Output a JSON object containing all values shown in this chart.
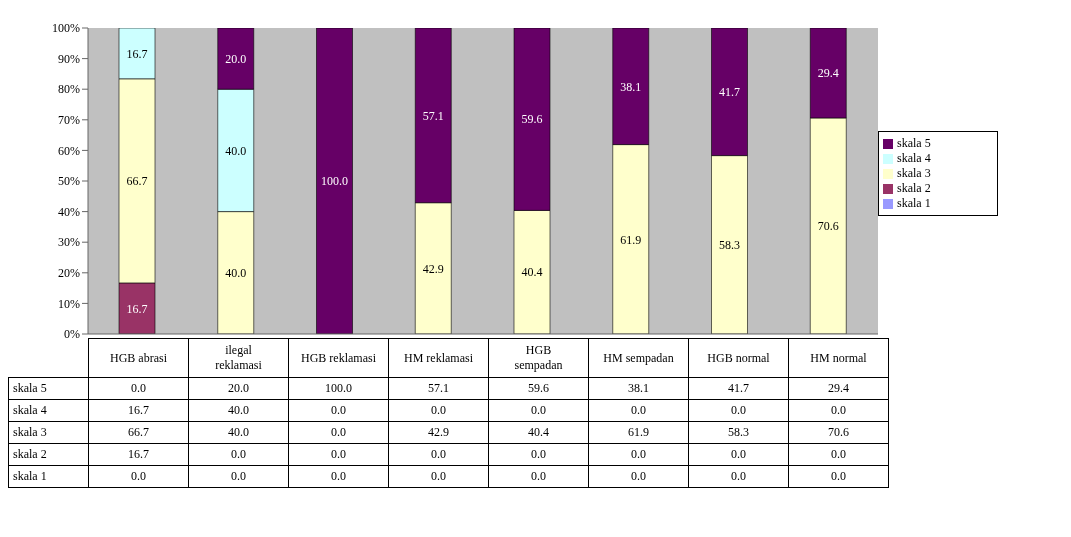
{
  "chart_data": {
    "type": "bar",
    "stacked": true,
    "categories": [
      "HGB abrasi",
      "ilegal reklamasi",
      "HGB reklamasi",
      "HM reklamasi",
      "HGB sempadan",
      "HM sempadan",
      "HGB normal",
      "HM normal"
    ],
    "series": [
      {
        "name": "skala 1",
        "color": "#9999ff",
        "values": [
          0.0,
          0.0,
          0.0,
          0.0,
          0.0,
          0.0,
          0.0,
          0.0
        ],
        "value_labels": [
          "0.0",
          "0.0",
          "0.0",
          "0.0",
          "0.0",
          "0.0",
          "0.0",
          "0.0"
        ]
      },
      {
        "name": "skala 2",
        "color": "#993366",
        "values": [
          16.7,
          0.0,
          0.0,
          0.0,
          0.0,
          0.0,
          0.0,
          0.0
        ],
        "value_labels": [
          "16.7",
          "0.0",
          "0.0",
          "0.0",
          "0.0",
          "0.0",
          "0.0",
          "0.0"
        ]
      },
      {
        "name": "skala 3",
        "color": "#ffffcc",
        "values": [
          66.7,
          40.0,
          0.0,
          42.9,
          40.4,
          61.9,
          58.3,
          70.6
        ],
        "value_labels": [
          "66.7",
          "40.0",
          "0.0",
          "42.9",
          "40.4",
          "61.9",
          "58.3",
          "70.6"
        ]
      },
      {
        "name": "skala 4",
        "color": "#ccffff",
        "values": [
          16.7,
          40.0,
          0.0,
          0.0,
          0.0,
          0.0,
          0.0,
          0.0
        ],
        "value_labels": [
          "16.7",
          "40.0",
          "0.0",
          "0.0",
          "0.0",
          "0.0",
          "0.0",
          "0.0"
        ]
      },
      {
        "name": "skala 5",
        "color": "#660066",
        "values": [
          0.0,
          20.0,
          100.0,
          57.1,
          59.6,
          38.1,
          41.7,
          29.4
        ],
        "value_labels": [
          "0.0",
          "20.0",
          "100.0",
          "57.1",
          "59.6",
          "38.1",
          "41.7",
          "29.4"
        ]
      }
    ],
    "ylim": [
      0,
      100
    ],
    "yticks": [
      {
        "value": 0,
        "label": "0%"
      },
      {
        "value": 10,
        "label": "10%"
      },
      {
        "value": 20,
        "label": "20%"
      },
      {
        "value": 30,
        "label": "30%"
      },
      {
        "value": 40,
        "label": "40%"
      },
      {
        "value": 50,
        "label": "50%"
      },
      {
        "value": 60,
        "label": "60%"
      },
      {
        "value": 70,
        "label": "70%"
      },
      {
        "value": 80,
        "label": "80%"
      },
      {
        "value": 90,
        "label": "90%"
      },
      {
        "value": 100,
        "label": "100%"
      }
    ],
    "legend": "right",
    "grid": false
  }
}
